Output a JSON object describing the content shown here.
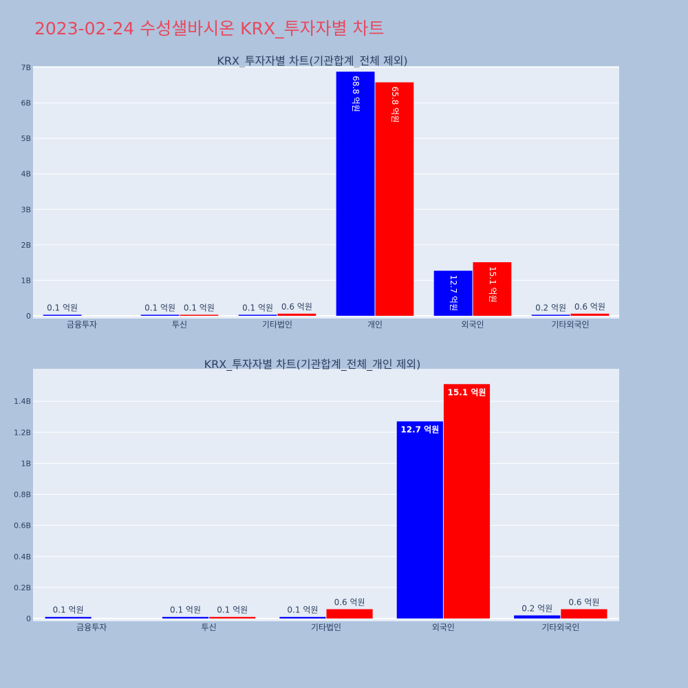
{
  "page_title": "2023-02-24 수성샐바시온 KRX_투자자별 차트",
  "colors": {
    "buy": "#0000ff",
    "sell": "#ff0000",
    "title": "#e8485c",
    "plot_bg": "#e5ecf6",
    "page_bg": "#b0c4de"
  },
  "chart_data": [
    {
      "type": "bar",
      "title": "KRX_투자자별 차트(기관합계_전체 제외)",
      "categories": [
        "금융투자",
        "투신",
        "기타법인",
        "개인",
        "외국인",
        "기타외국인"
      ],
      "ylim": [
        0,
        7000000000
      ],
      "yticks": [
        0,
        1000000000,
        2000000000,
        3000000000,
        4000000000,
        5000000000,
        6000000000,
        7000000000
      ],
      "ytick_labels": [
        "0",
        "1B",
        "2B",
        "3B",
        "4B",
        "5B",
        "6B",
        "7B"
      ],
      "label_style": "vertical-inside-large",
      "grid": true,
      "series": [
        {
          "color": "#0000ff",
          "values": [
            10000000,
            10000000,
            10000000,
            6880000000,
            1270000000,
            20000000
          ],
          "labels": [
            "0.1 억원",
            "0.1 억원",
            "0.1 억원",
            "68.8 억원",
            "12.7 억원",
            "0.2 억원"
          ]
        },
        {
          "color": "#ff0000",
          "values": [
            0,
            10000000,
            60000000,
            6580000000,
            1510000000,
            60000000
          ],
          "labels": [
            "",
            "0.1 억원",
            "0.6 억원",
            "65.8 억원",
            "15.1 억원",
            "0.6 억원"
          ]
        }
      ]
    },
    {
      "type": "bar",
      "title": "KRX_투자자별 차트(기관합계_전체_개인 제외)",
      "categories": [
        "금융투자",
        "투신",
        "기타법인",
        "외국인",
        "기타외국인"
      ],
      "ylim": [
        0,
        1600000000
      ],
      "yticks": [
        0,
        200000000,
        400000000,
        600000000,
        800000000,
        1000000000,
        1200000000,
        1400000000
      ],
      "ytick_labels": [
        "0",
        "0.2B",
        "0.4B",
        "0.6B",
        "0.8B",
        "1B",
        "1.2B",
        "1.4B"
      ],
      "label_style": "horizontal-inside-large",
      "grid": true,
      "series": [
        {
          "color": "#0000ff",
          "values": [
            10000000,
            10000000,
            10000000,
            1270000000,
            20000000
          ],
          "labels": [
            "0.1 억원",
            "0.1 억원",
            "0.1 억원",
            "12.7 억원",
            "0.2 억원"
          ]
        },
        {
          "color": "#ff0000",
          "values": [
            0,
            10000000,
            60000000,
            1510000000,
            60000000
          ],
          "labels": [
            "",
            "0.1 억원",
            "0.6 억원",
            "15.1 억원",
            "0.6 억원"
          ]
        }
      ]
    }
  ]
}
